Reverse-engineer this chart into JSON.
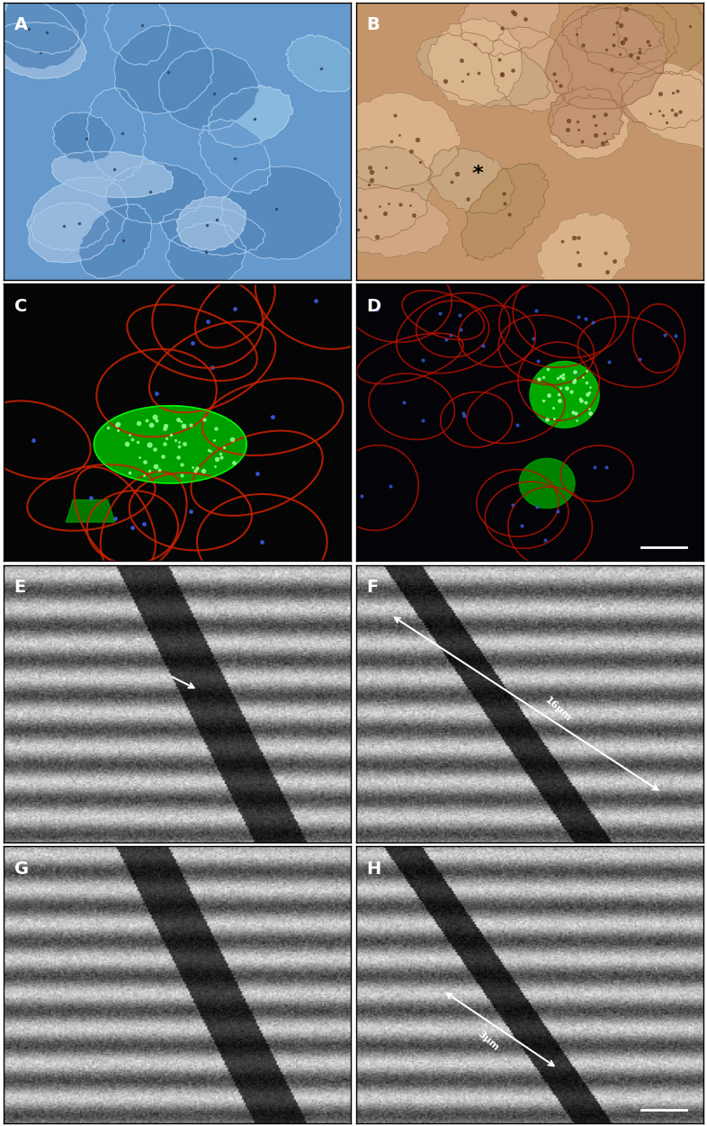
{
  "figure_width": 7.86,
  "figure_height": 12.51,
  "dpi": 100,
  "panels": [
    "A",
    "B",
    "C",
    "D",
    "E",
    "F",
    "G",
    "H"
  ],
  "panel_label_color": "white",
  "panel_label_bold_panels": [
    "A",
    "B",
    "C",
    "D",
    "E",
    "F",
    "G",
    "H"
  ],
  "grid_rows": 4,
  "grid_cols": 2,
  "panel_A_color_scheme": "blue_muscle",
  "panel_B_color_scheme": "brown_muscle",
  "panel_C_color_scheme": "fluorescence_dark",
  "panel_D_color_scheme": "fluorescence_dark2",
  "panel_E_color_scheme": "em_grayscale",
  "panel_F_color_scheme": "em_grayscale",
  "panel_G_color_scheme": "em_grayscale",
  "panel_H_color_scheme": "em_grayscale",
  "scalebar_color": "white",
  "annotation_color": "white",
  "border_color": "black",
  "border_linewidth": 1.0
}
